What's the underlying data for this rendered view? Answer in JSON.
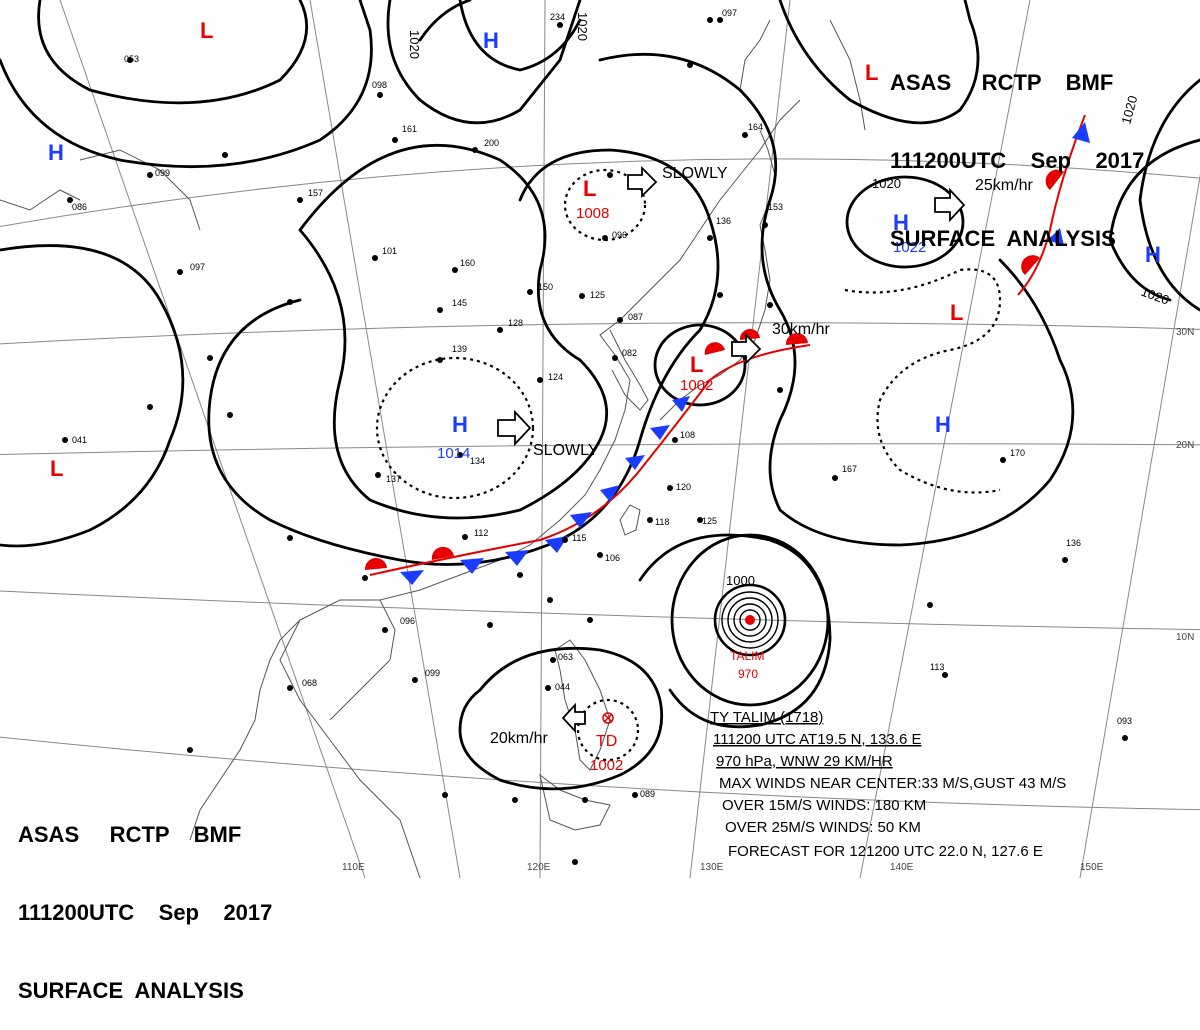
{
  "header": {
    "line1": "ASAS     RCTP    BMF",
    "line2": "111200UTC    Sep    2017",
    "line3": "SURFACE  ANALYSIS"
  },
  "systems": {
    "h_1014": {
      "symbol": "H",
      "pressure": "1014",
      "motion": "SLOWLY"
    },
    "l_1008": {
      "symbol": "L",
      "pressure": "1008",
      "motion": "SLOWLY"
    },
    "l_1002": {
      "symbol": "L",
      "pressure": "1002",
      "motion": "30km/hr"
    },
    "h_1022": {
      "symbol": "H",
      "pressure": "1022",
      "motion": "25km/hr",
      "isobar": "1020"
    },
    "td_1002": {
      "symbol": "TD",
      "pressure": "1002",
      "motion": "20km/hr"
    },
    "talim": {
      "name": "TALIM",
      "pressure": "970",
      "isobar": "1000"
    },
    "extra_highs": [
      "H",
      "H",
      "H",
      "H"
    ],
    "extra_lows": [
      "L",
      "L",
      "L",
      "L"
    ]
  },
  "isobar_labels": [
    "1020",
    "1020",
    "1020",
    "1020",
    "1000"
  ],
  "lat_labels": [
    "30N",
    "20N",
    "10N"
  ],
  "lon_labels": [
    "110E",
    "120E",
    "130E",
    "140E",
    "150E"
  ],
  "typhoon_info": {
    "line1": "TY  TALIM  (1718)",
    "line2": "111200 UTC  AT19.5 N, 133.6 E",
    "line3": "970 hPa, WNW  29 KM/HR",
    "line4": "MAX WINDS NEAR CENTER:33 M/S,GUST 43 M/S",
    "line5": "OVER 15M/S WINDS: 180 KM",
    "line6": "OVER 25M/S WINDS: 50 KM",
    "line7": "FORECAST FOR 121200 UTC 22.0 N, 127.6 E"
  },
  "stations": [
    "098",
    "161",
    "200",
    "157",
    "101",
    "160",
    "145",
    "128",
    "087",
    "082",
    "124",
    "150",
    "125",
    "096",
    "136",
    "153",
    "164",
    "234",
    "097",
    "139",
    "137",
    "134",
    "112",
    "115",
    "106",
    "118",
    "120",
    "125",
    "108",
    "167",
    "170",
    "136",
    "113",
    "093",
    "099",
    "068",
    "096",
    "063",
    "044",
    "089",
    "053",
    "041",
    "099",
    "086",
    "097"
  ],
  "colors": {
    "high": "#1a3cff",
    "low": "#e60000",
    "isobar": "#000000",
    "grid": "#777777",
    "coast": "#666666"
  }
}
